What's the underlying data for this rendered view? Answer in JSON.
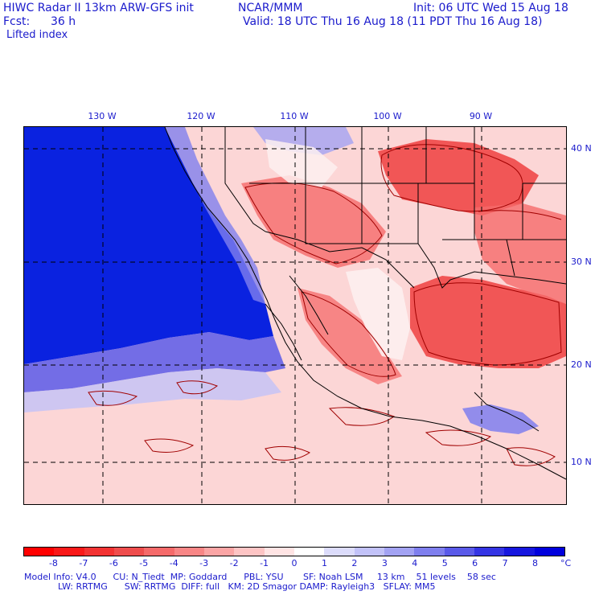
{
  "header": {
    "title": "HIWC Radar II 13km ARW-GFS init",
    "center": "NCAR/MMM",
    "fcst_label": "Fcst:",
    "fcst_value": "36 h",
    "init": "Init: 06 UTC Wed 15 Aug 18",
    "valid": "Valid: 18 UTC Thu 16 Aug 18 (11 PDT Thu 16 Aug 18)",
    "field": "Lifted index"
  },
  "map": {
    "lon_labels": [
      "130 W",
      "120 W",
      "110 W",
      "100 W",
      "90 W"
    ],
    "lat_labels": [
      "40 N",
      "30 N",
      "20 N",
      "10 N"
    ],
    "colors": {
      "ocean_stable": "#0a22e0",
      "unstable_strong": "#ee4040",
      "unstable_light": "#fbcaca",
      "neutral": "#fdf0f0",
      "grid": "#000000",
      "borders": "#000000",
      "contour": "#a00000"
    }
  },
  "colorbar": {
    "labels": [
      "-8",
      "-7",
      "-6",
      "-5",
      "-4",
      "-3",
      "-2",
      "-1",
      "0",
      "1",
      "2",
      "3",
      "4",
      "5",
      "6",
      "7",
      "8"
    ],
    "unit": "°C",
    "colors": [
      "#ff0000",
      "#f91919",
      "#f33333",
      "#ef4d4d",
      "#f56a6a",
      "#f88686",
      "#fba5a5",
      "#fdc4c4",
      "#ffe4e4",
      "#ffffff",
      "#dcdcfb",
      "#c2c2f8",
      "#a3a3f3",
      "#7f7fee",
      "#5a5ae9",
      "#3434e4",
      "#1616df",
      "#0000dd"
    ]
  },
  "footer": {
    "line1": "Model Info: V4.0      CU: N_Tiedt  MP: Goddard      PBL: YSU       SF: Noah LSM     13 km    51 levels    58 sec",
    "line2": "            LW: RRTMG      SW: RRTMG  DIFF: full   KM: 2D Smagor DAMP: Rayleigh3   SFLAY: MM5"
  }
}
